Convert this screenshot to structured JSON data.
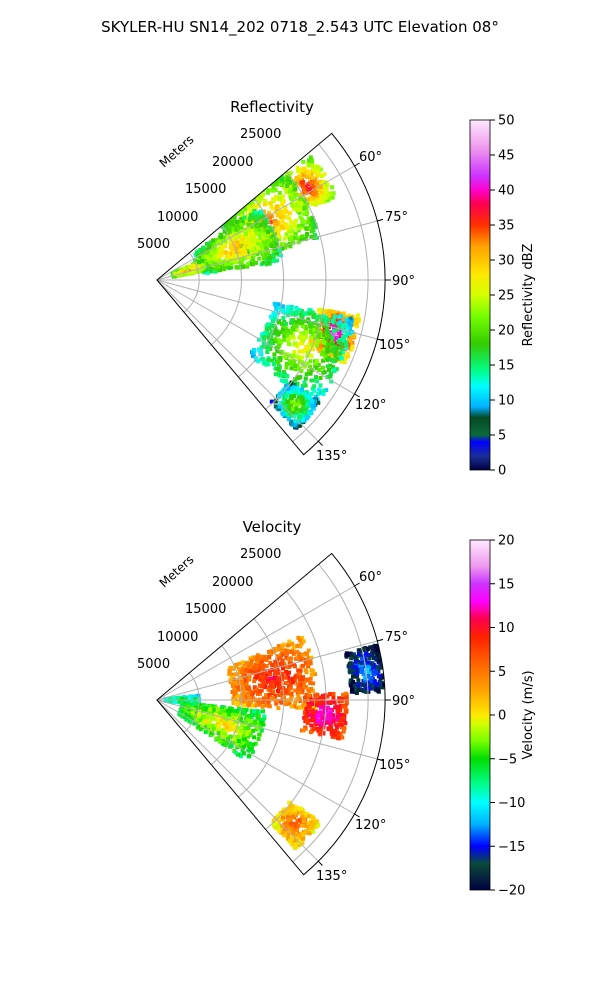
{
  "figure": {
    "suptitle": "SKYLER-HU  SN14_202  0718_2.543 UTC Elevation 08°"
  },
  "chart_data": [
    {
      "type": "heatmap",
      "projection": "polar-sector",
      "title": "Reflectivity",
      "radial_label": "Meters",
      "radial_ticks": [
        5000,
        10000,
        15000,
        20000,
        25000
      ],
      "r_max": 27000,
      "theta_range_deg": [
        50,
        140
      ],
      "theta_ticks": [
        "60°",
        "75°",
        "90°",
        "105°",
        "120°",
        "135°"
      ],
      "grid": true,
      "colorbar": {
        "label": "Reflectivity dBZ",
        "range": [
          0,
          50
        ],
        "ticks": [
          "0",
          "5",
          "10",
          "15",
          "20",
          "25",
          "30",
          "35",
          "40",
          "45",
          "50"
        ],
        "stops": [
          [
            0,
            "#000040"
          ],
          [
            2,
            "#1b2f9a"
          ],
          [
            4,
            "#0000ff"
          ],
          [
            5,
            "#0a6a3a"
          ],
          [
            7.5,
            "#044a24"
          ],
          [
            9,
            "#00b0ff"
          ],
          [
            12,
            "#00ffff"
          ],
          [
            14,
            "#00ff90"
          ],
          [
            18,
            "#33cc00"
          ],
          [
            22,
            "#77ff00"
          ],
          [
            25,
            "#d4ff00"
          ],
          [
            28,
            "#ffe800"
          ],
          [
            32,
            "#ffa000"
          ],
          [
            35,
            "#ff3000"
          ],
          [
            38,
            "#ff0050"
          ],
          [
            40,
            "#ff00cc"
          ],
          [
            42,
            "#cc33ff"
          ],
          [
            46,
            "#ee99ee"
          ],
          [
            50,
            "#ffe8ff"
          ]
        ]
      },
      "echo_features": [
        {
          "theta": 58,
          "r": 21000,
          "value": 38,
          "extent": "core"
        },
        {
          "theta": 62,
          "r": 15000,
          "value": 34,
          "extent": "band"
        },
        {
          "theta": 68,
          "r": 10000,
          "value": 32,
          "extent": "band"
        },
        {
          "theta": 73,
          "r": 4000,
          "value": 36,
          "extent": "near"
        },
        {
          "theta": 107,
          "r": 22000,
          "value": 44,
          "extent": "core"
        },
        {
          "theta": 115,
          "r": 19000,
          "value": 28,
          "extent": "band"
        },
        {
          "theta": 132,
          "r": 22000,
          "value": 24,
          "extent": "tail"
        }
      ]
    },
    {
      "type": "heatmap",
      "projection": "polar-sector",
      "title": "Velocity",
      "radial_label": "Meters",
      "radial_ticks": [
        5000,
        10000,
        15000,
        20000,
        25000
      ],
      "r_max": 27000,
      "theta_range_deg": [
        50,
        140
      ],
      "theta_ticks": [
        "60°",
        "75°",
        "90°",
        "105°",
        "120°",
        "135°"
      ],
      "grid": true,
      "colorbar": {
        "label": "Velocity (m/s)",
        "range": [
          -20,
          20
        ],
        "ticks": [
          "−20",
          "−15",
          "−10",
          "−5",
          "0",
          "5",
          "10",
          "15",
          "20"
        ],
        "stops": [
          [
            -20,
            "#000040"
          ],
          [
            -17,
            "#0a4a3a"
          ],
          [
            -15,
            "#0000ff"
          ],
          [
            -12.5,
            "#00b0ff"
          ],
          [
            -10,
            "#00ffff"
          ],
          [
            -8,
            "#00ff90"
          ],
          [
            -5,
            "#00dd00"
          ],
          [
            -3,
            "#77ff00"
          ],
          [
            -1,
            "#d4ff00"
          ],
          [
            0,
            "#ffe800"
          ],
          [
            3,
            "#ffa000"
          ],
          [
            6,
            "#ff6000"
          ],
          [
            9,
            "#ff2000"
          ],
          [
            11,
            "#ff0050"
          ],
          [
            13,
            "#ff00ff"
          ],
          [
            15,
            "#cc33ff"
          ],
          [
            17,
            "#ee99ee"
          ],
          [
            20,
            "#ffe8ff"
          ]
        ]
      },
      "echo_features": [
        {
          "theta": 90,
          "r": 3000,
          "value": -3,
          "extent": "near"
        },
        {
          "theta": 110,
          "r": 8000,
          "value": 1,
          "extent": "band"
        },
        {
          "theta": 80,
          "r": 14000,
          "value": 10,
          "extent": "band"
        },
        {
          "theta": 95,
          "r": 20000,
          "value": 14,
          "extent": "core"
        },
        {
          "theta": 82,
          "r": 25000,
          "value": -12,
          "extent": "patch"
        },
        {
          "theta": 132,
          "r": 22000,
          "value": 7,
          "extent": "tail"
        }
      ]
    }
  ]
}
